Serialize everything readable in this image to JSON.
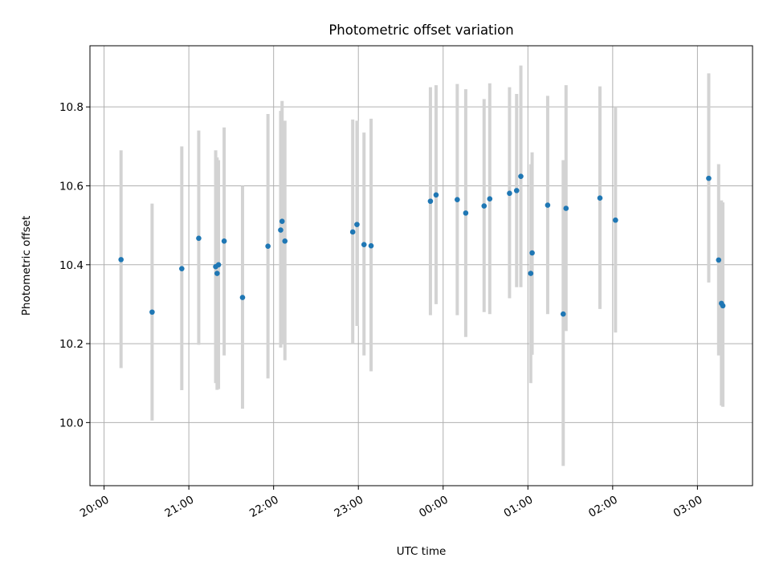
{
  "chart_data": {
    "type": "scatter",
    "title": "Photometric offset variation",
    "xlabel": "UTC time",
    "ylabel": "Photometric offset",
    "x_tick_labels": [
      "20:00",
      "21:00",
      "22:00",
      "23:00",
      "00:00",
      "01:00",
      "02:00",
      "03:00"
    ],
    "y_tick_labels": [
      "10.0",
      "10.2",
      "10.4",
      "10.6",
      "10.8"
    ],
    "y_ticks": [
      10.0,
      10.2,
      10.4,
      10.6,
      10.8
    ],
    "ylim": [
      9.84,
      10.955
    ],
    "xlim": [
      "19:50",
      "03:39"
    ],
    "grid": true,
    "marker_color": "#1f77b4",
    "errorbar_color": "#d3d3d3",
    "points": [
      {
        "t": "20:12",
        "y": 10.413,
        "lo": 10.138,
        "hi": 10.69
      },
      {
        "t": "20:34",
        "y": 10.28,
        "lo": 10.005,
        "hi": 10.555
      },
      {
        "t": "20:55",
        "y": 10.39,
        "lo": 10.082,
        "hi": 10.7
      },
      {
        "t": "21:07",
        "y": 10.467,
        "lo": 10.197,
        "hi": 10.74
      },
      {
        "t": "21:19",
        "y": 10.395,
        "lo": 10.1,
        "hi": 10.69
      },
      {
        "t": "21:20",
        "y": 10.378,
        "lo": 10.083,
        "hi": 10.672
      },
      {
        "t": "21:21",
        "y": 10.4,
        "lo": 10.085,
        "hi": 10.665
      },
      {
        "t": "21:25",
        "y": 10.46,
        "lo": 10.17,
        "hi": 10.748
      },
      {
        "t": "21:38",
        "y": 10.317,
        "lo": 10.035,
        "hi": 10.6
      },
      {
        "t": "21:56",
        "y": 10.447,
        "lo": 10.112,
        "hi": 10.782
      },
      {
        "t": "22:05",
        "y": 10.488,
        "lo": 10.19,
        "hi": 10.79
      },
      {
        "t": "22:06",
        "y": 10.51,
        "lo": 10.2,
        "hi": 10.815
      },
      {
        "t": "22:08",
        "y": 10.46,
        "lo": 10.158,
        "hi": 10.765
      },
      {
        "t": "22:56",
        "y": 10.483,
        "lo": 10.2,
        "hi": 10.768
      },
      {
        "t": "22:59",
        "y": 10.502,
        "lo": 10.245,
        "hi": 10.765
      },
      {
        "t": "23:04",
        "y": 10.451,
        "lo": 10.17,
        "hi": 10.735
      },
      {
        "t": "23:09",
        "y": 10.448,
        "lo": 10.13,
        "hi": 10.77
      },
      {
        "t": "23:51",
        "y": 10.561,
        "lo": 10.272,
        "hi": 10.85
      },
      {
        "t": "23:55",
        "y": 10.577,
        "lo": 10.3,
        "hi": 10.855
      },
      {
        "t": "00:10",
        "y": 10.565,
        "lo": 10.272,
        "hi": 10.858
      },
      {
        "t": "00:16",
        "y": 10.531,
        "lo": 10.217,
        "hi": 10.845
      },
      {
        "t": "00:29",
        "y": 10.549,
        "lo": 10.28,
        "hi": 10.82
      },
      {
        "t": "00:33",
        "y": 10.567,
        "lo": 10.275,
        "hi": 10.86
      },
      {
        "t": "00:47",
        "y": 10.581,
        "lo": 10.315,
        "hi": 10.85
      },
      {
        "t": "00:52",
        "y": 10.588,
        "lo": 10.343,
        "hi": 10.833
      },
      {
        "t": "00:55",
        "y": 10.624,
        "lo": 10.343,
        "hi": 10.905
      },
      {
        "t": "01:02",
        "y": 10.378,
        "lo": 10.1,
        "hi": 10.655
      },
      {
        "t": "01:03",
        "y": 10.43,
        "lo": 10.172,
        "hi": 10.685
      },
      {
        "t": "01:14",
        "y": 10.551,
        "lo": 10.275,
        "hi": 10.828
      },
      {
        "t": "01:25",
        "y": 10.275,
        "lo": 9.89,
        "hi": 10.665
      },
      {
        "t": "01:27",
        "y": 10.543,
        "lo": 10.232,
        "hi": 10.855
      },
      {
        "t": "01:51",
        "y": 10.569,
        "lo": 10.288,
        "hi": 10.852
      },
      {
        "t": "02:02",
        "y": 10.513,
        "lo": 10.228,
        "hi": 10.8
      },
      {
        "t": "03:08",
        "y": 10.619,
        "lo": 10.355,
        "hi": 10.885
      },
      {
        "t": "03:15",
        "y": 10.412,
        "lo": 10.17,
        "hi": 10.655
      },
      {
        "t": "03:17",
        "y": 10.302,
        "lo": 10.043,
        "hi": 10.563
      },
      {
        "t": "03:18",
        "y": 10.296,
        "lo": 10.04,
        "hi": 10.558
      }
    ]
  }
}
